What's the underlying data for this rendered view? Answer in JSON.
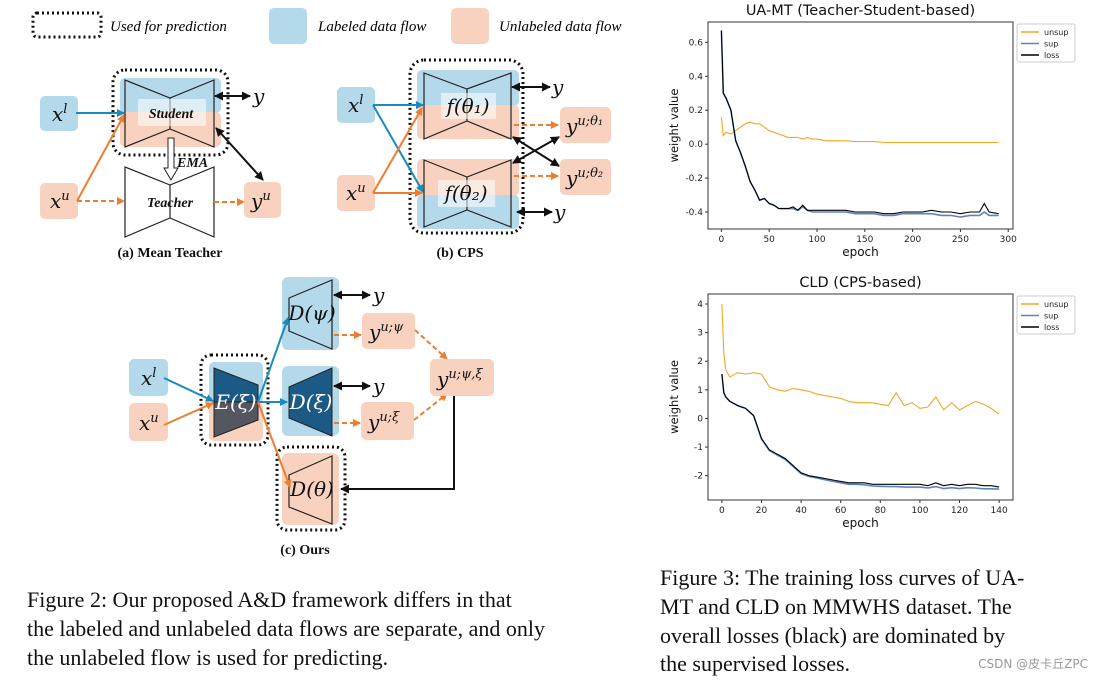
{
  "colors": {
    "labeled_fill": "#b3d9ea",
    "unlabeled_fill": "#f9d2bf",
    "labeled_arrow": "#1a8bbf",
    "unlabeled_arrow": "#ed7d31",
    "encoder_dark": "#1b5a85",
    "unsup": "#f5a623",
    "sup": "#5b84c4",
    "loss": "#000000"
  },
  "figure2": {
    "legend": {
      "prediction": "Used for prediction",
      "labeled": "Labeled data flow",
      "unlabeled": "Unlabeled data flow"
    },
    "a": {
      "caption": "(a) Mean Teacher",
      "student": "Student",
      "teacher": "Teacher",
      "ema": "EMA",
      "x": "x",
      "l": "l",
      "u": "u",
      "y": "y",
      "yu_sup": "u"
    },
    "b": {
      "caption": "(b) CPS",
      "f1": "f(θ₁)",
      "f2": "f(θ₂)",
      "x": "x",
      "l": "l",
      "u": "u",
      "y": "y",
      "y1_sup": "u;θ₁",
      "y2_sup": "u;θ₂"
    },
    "c": {
      "caption": "(c) Ours",
      "enc": "E(ξ)",
      "dpsi": "D(ψ)",
      "dxi": "D(ξ)",
      "dtheta": "D(θ)",
      "x": "x",
      "l": "l",
      "u": "u",
      "y": "y",
      "ypsi_sup": "u;ψ",
      "yxi_sup": "u;ξ",
      "ycomb_sup": "u;ψ,ξ"
    },
    "caption_lines": [
      "Figure 2: Our proposed A&D framework differs in that",
      "the labeled and unlabeled data flows are separate, and only",
      "the unlabeled flow is used for predicting."
    ]
  },
  "figure3": {
    "caption_lines": [
      "Figure 3: The training loss curves of UA-",
      "MT and CLD on MMWHS dataset. The",
      "overall losses (black) are dominated by",
      "the supervised losses."
    ]
  },
  "watermark": "CSDN @皮卡丘ZPC",
  "chart_data": [
    {
      "type": "line",
      "title": "UA-MT (Teacher-Student-based)",
      "xlabel": "epoch",
      "ylabel": "weight value",
      "xlim": [
        -14,
        305
      ],
      "ylim": [
        -0.5,
        0.72
      ],
      "xticks": [
        0,
        50,
        100,
        150,
        200,
        250,
        300
      ],
      "yticks": [
        -0.4,
        -0.2,
        0.0,
        0.2,
        0.4,
        0.6
      ],
      "ytick_labels": [
        "-0.4",
        "-0.2",
        "0.0",
        "0.2",
        "0.4",
        "0.6"
      ],
      "legend_position": "outside-top-right",
      "grid": false,
      "x": [
        0,
        2,
        5,
        10,
        15,
        20,
        25,
        30,
        35,
        40,
        45,
        50,
        55,
        60,
        65,
        70,
        75,
        80,
        85,
        90,
        95,
        100,
        110,
        120,
        130,
        140,
        150,
        160,
        170,
        180,
        190,
        200,
        210,
        220,
        230,
        240,
        250,
        260,
        270,
        275,
        280,
        290
      ],
      "series": [
        {
          "name": "unsup",
          "color": "#f5a623",
          "values": [
            0.16,
            0.05,
            0.07,
            0.06,
            0.08,
            0.1,
            0.12,
            0.13,
            0.12,
            0.12,
            0.1,
            0.08,
            0.07,
            0.06,
            0.05,
            0.04,
            0.04,
            0.04,
            0.03,
            0.04,
            0.03,
            0.03,
            0.02,
            0.02,
            0.02,
            0.015,
            0.015,
            0.015,
            0.01,
            0.01,
            0.01,
            0.01,
            0.01,
            0.01,
            0.01,
            0.01,
            0.01,
            0.01,
            0.01,
            0.01,
            0.01,
            0.01
          ]
        },
        {
          "name": "sup",
          "color": "#5b84c4",
          "values": [
            0.67,
            0.3,
            0.27,
            0.2,
            0.02,
            -0.05,
            -0.13,
            -0.22,
            -0.27,
            -0.33,
            -0.32,
            -0.35,
            -0.36,
            -0.38,
            -0.38,
            -0.38,
            -0.38,
            -0.39,
            -0.37,
            -0.39,
            -0.4,
            -0.4,
            -0.4,
            -0.4,
            -0.4,
            -0.41,
            -0.41,
            -0.41,
            -0.42,
            -0.42,
            -0.41,
            -0.41,
            -0.41,
            -0.41,
            -0.42,
            -0.42,
            -0.43,
            -0.42,
            -0.42,
            -0.4,
            -0.42,
            -0.42
          ]
        },
        {
          "name": "loss",
          "color": "#000000",
          "values": [
            0.67,
            0.3,
            0.27,
            0.2,
            0.02,
            -0.05,
            -0.13,
            -0.22,
            -0.27,
            -0.33,
            -0.32,
            -0.35,
            -0.36,
            -0.38,
            -0.38,
            -0.38,
            -0.37,
            -0.39,
            -0.36,
            -0.39,
            -0.39,
            -0.39,
            -0.39,
            -0.39,
            -0.39,
            -0.4,
            -0.4,
            -0.4,
            -0.41,
            -0.41,
            -0.4,
            -0.4,
            -0.4,
            -0.39,
            -0.4,
            -0.4,
            -0.41,
            -0.4,
            -0.4,
            -0.35,
            -0.4,
            -0.41
          ]
        }
      ]
    },
    {
      "type": "line",
      "title": "CLD (CPS-based)",
      "xlabel": "epoch",
      "ylabel": "weight value",
      "xlim": [
        -7,
        147
      ],
      "ylim": [
        -2.85,
        4.35
      ],
      "xticks": [
        0,
        20,
        40,
        60,
        80,
        100,
        120,
        140
      ],
      "yticks": [
        -2,
        -1,
        0,
        1,
        2,
        3,
        4
      ],
      "ytick_labels": [
        "-2",
        "-1",
        "0",
        "1",
        "2",
        "3",
        "4"
      ],
      "legend_position": "outside-top-right",
      "grid": false,
      "x": [
        0,
        1,
        2,
        4,
        8,
        12,
        16,
        20,
        24,
        28,
        32,
        36,
        40,
        44,
        48,
        52,
        56,
        60,
        64,
        68,
        72,
        76,
        80,
        84,
        88,
        92,
        96,
        100,
        104,
        108,
        112,
        116,
        120,
        124,
        128,
        132,
        136,
        140
      ],
      "series": [
        {
          "name": "unsup",
          "color": "#f5a623",
          "values": [
            4.0,
            2.3,
            1.7,
            1.45,
            1.6,
            1.55,
            1.6,
            1.55,
            1.1,
            1.0,
            0.95,
            1.05,
            1.0,
            0.95,
            0.85,
            0.8,
            0.75,
            0.7,
            0.6,
            0.55,
            0.55,
            0.55,
            0.5,
            0.45,
            0.9,
            0.45,
            0.55,
            0.35,
            0.4,
            0.75,
            0.3,
            0.55,
            0.3,
            0.45,
            0.6,
            0.5,
            0.35,
            0.15
          ]
        },
        {
          "name": "sup",
          "color": "#5b84c4",
          "values": [
            1.55,
            0.9,
            0.75,
            0.6,
            0.45,
            0.35,
            0.1,
            -0.72,
            -1.12,
            -1.28,
            -1.43,
            -1.68,
            -1.93,
            -2.03,
            -2.08,
            -2.14,
            -2.2,
            -2.25,
            -2.3,
            -2.3,
            -2.32,
            -2.36,
            -2.37,
            -2.38,
            -2.38,
            -2.4,
            -2.4,
            -2.4,
            -2.43,
            -2.38,
            -2.45,
            -2.42,
            -2.45,
            -2.42,
            -2.43,
            -2.46,
            -2.46,
            -2.47
          ]
        },
        {
          "name": "loss",
          "color": "#000000",
          "values": [
            1.55,
            0.9,
            0.75,
            0.6,
            0.45,
            0.35,
            0.1,
            -0.7,
            -1.1,
            -1.25,
            -1.4,
            -1.65,
            -1.9,
            -2.0,
            -2.05,
            -2.1,
            -2.15,
            -2.2,
            -2.25,
            -2.25,
            -2.25,
            -2.3,
            -2.3,
            -2.3,
            -2.3,
            -2.3,
            -2.3,
            -2.3,
            -2.35,
            -2.25,
            -2.35,
            -2.3,
            -2.35,
            -2.3,
            -2.3,
            -2.35,
            -2.35,
            -2.4
          ]
        }
      ]
    }
  ]
}
